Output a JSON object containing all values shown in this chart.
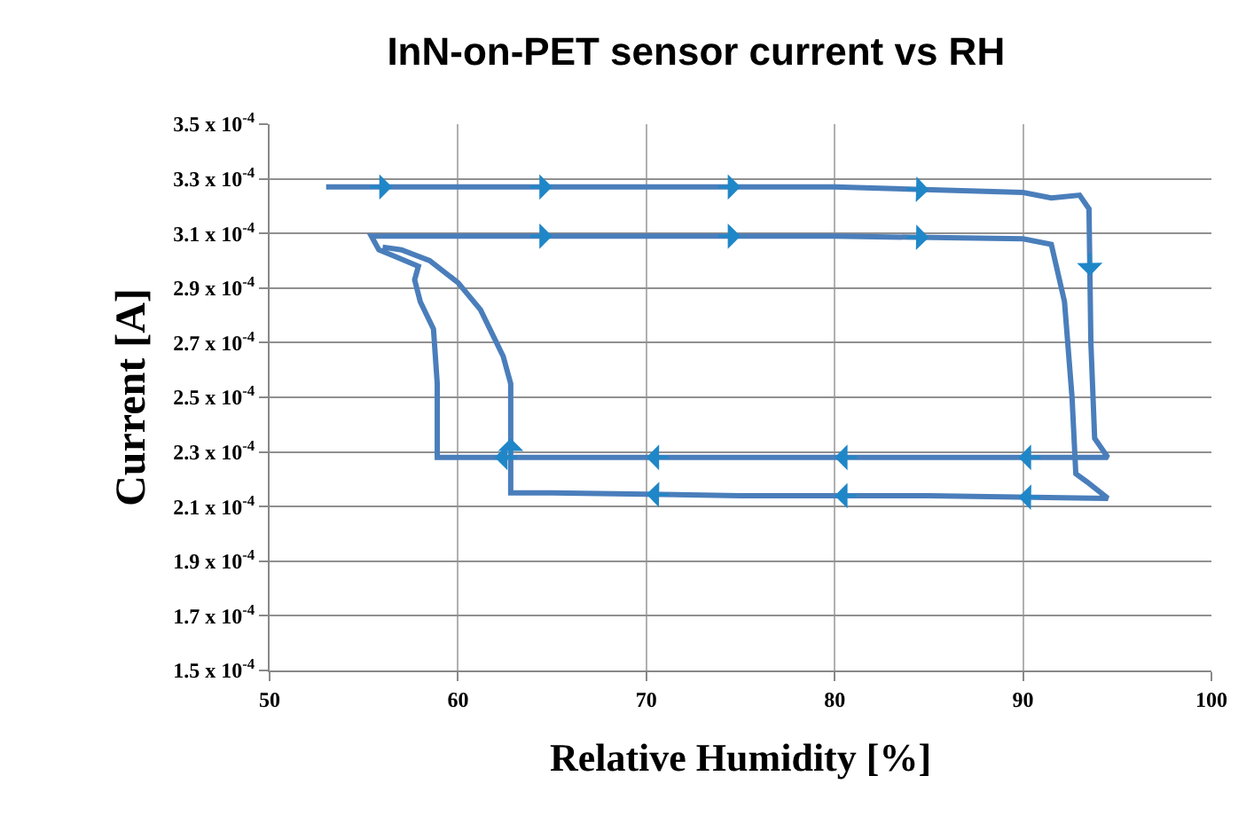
{
  "chart_data": {
    "type": "line",
    "title": "InN-on-PET sensor current vs RH",
    "xlabel": "Relative Humidity [%]",
    "ylabel": "Current [A]",
    "series": [
      {
        "color": "#4a7ebb",
        "x": [
          53.0,
          60,
          70,
          80,
          90,
          91.5,
          93.0,
          93.5,
          93.6,
          93.8,
          94.5,
          85,
          75,
          65,
          58.9,
          58.9,
          58.7,
          58.0,
          57.7,
          57.9,
          56.5,
          55.8,
          55.4,
          60,
          70,
          80,
          90,
          91.5,
          92.2,
          92.6,
          92.8,
          93.4,
          94.5,
          85,
          75,
          65,
          62.8,
          62.8,
          62.4,
          61.2,
          60.0,
          58.5,
          57.0,
          56.0
        ],
        "values": [
          0.000327,
          0.000327,
          0.000327,
          0.000327,
          0.000325,
          0.000323,
          0.000324,
          0.000319,
          0.00027,
          0.000235,
          0.000228,
          0.000228,
          0.000228,
          0.000228,
          0.000228,
          0.000255,
          0.000275,
          0.000285,
          0.000293,
          0.000298,
          0.000302,
          0.000304,
          0.000309,
          0.000309,
          0.000309,
          0.000309,
          0.000308,
          0.000306,
          0.000285,
          0.00025,
          0.000222,
          0.000219,
          0.000213,
          0.000214,
          0.000214,
          0.000215,
          0.000215,
          0.000255,
          0.000265,
          0.000282,
          0.000292,
          0.0003,
          0.000304,
          0.000305
        ]
      }
    ],
    "xlim": [
      50,
      100
    ],
    "xticks": [
      50,
      60,
      70,
      80,
      90,
      100
    ],
    "ylim": [
      0.00015,
      0.00035
    ],
    "yticks": [
      {
        "value": 0.00015,
        "label": "1.5 x 10$^{-4}$"
      },
      {
        "value": 0.00017,
        "label": "1.7 x 10$^{-4}$"
      },
      {
        "value": 0.00019,
        "label": "1.9 x 10$^{-4}$"
      },
      {
        "value": 0.00021,
        "label": "2.1 x 10$^{-4}$"
      },
      {
        "value": 0.00023,
        "label": "2.3 x 10$^{-4}$"
      },
      {
        "value": 0.00025,
        "label": "2.5 x 10$^{-4}$"
      },
      {
        "value": 0.00027,
        "label": "2.7 x 10$^{-4}$"
      },
      {
        "value": 0.00029,
        "label": "2.9 x 10$^{-4}$"
      },
      {
        "value": 0.00031,
        "label": "3.1 x 10$^{-4}$"
      },
      {
        "value": 0.00033,
        "label": "3.3 x 10$^{-4}$"
      },
      {
        "value": 0.00035,
        "label": "3.5 x 10$^{-4}$"
      }
    ],
    "grid": true,
    "marker": "none",
    "line_style": "solid"
  }
}
